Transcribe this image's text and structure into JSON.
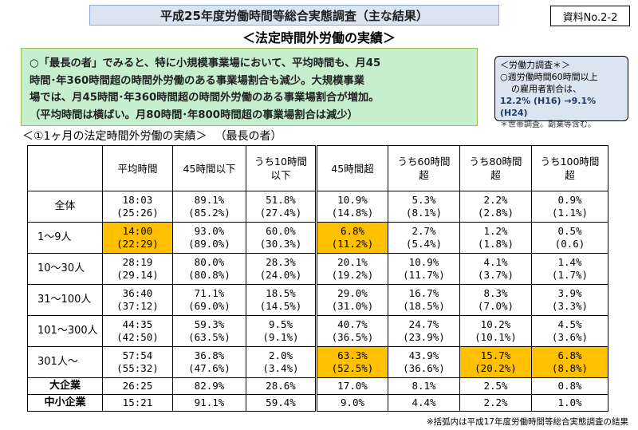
{
  "header": {
    "title": "平成25年度労働時間等総合実態調査（主な結果）",
    "doc_no": "資料No.2-2",
    "subtitle": "＜法定時間外労働の実績＞"
  },
  "summary": {
    "lines": [
      "○「最長の者」でみると、特に小規模事業場において、平均時間も、月45",
      "時間･年360時間超の時間外労働のある事業場割合も減少。大規模事業",
      "場では、月45時間･年360時間超の時間外労働のある事業場割合が増加。",
      "（平均時間は横ばい。月80時間･年800時間超の事業場割合は減少）"
    ]
  },
  "survey_note": {
    "line1": "＜労働力調査＊＞",
    "line2": "○週労働時間60時間以上",
    "line3": "の雇用者割合は、",
    "line4": "12.2% (H16) →9.1% (H24)",
    "line5": "＊世帯調査。副業等含む。"
  },
  "section": {
    "label": "＜①1ヶ月の法定時間外労働の実績＞",
    "sub": "（最長の者）"
  },
  "table": {
    "headers": [
      "平均時間",
      "45時間以下",
      "うち10時間\n以下",
      "45時間超",
      "うち60時間\n超",
      "うち80時間\n超",
      "うち100時間\n超"
    ],
    "rows": [
      {
        "label": "全体",
        "cur": [
          "18:03",
          "89.1%",
          "51.8%",
          "10.9%",
          "5.3%",
          "2.2%",
          "0.9%"
        ],
        "prev": [
          "(25:26)",
          "(85.2%)",
          "(27.4%)",
          "(14.8%)",
          "(8.1%)",
          "(2.8%)",
          "(1.1%)"
        ]
      },
      {
        "label": "1～9人",
        "cur": [
          "14:00",
          "93.0%",
          "60.0%",
          "6.8%",
          "2.7%",
          "1.2%",
          "0.5%"
        ],
        "prev": [
          "(22:29)",
          "(89.0%)",
          "(30.3%)",
          "(11.2%)",
          "(5.4%)",
          "(1.8%)",
          "(0.6)"
        ]
      },
      {
        "label": "10～30人",
        "cur": [
          "28:19",
          "80.0%",
          "28.3%",
          "20.1%",
          "10.9%",
          "4.1%",
          "1.4%"
        ],
        "prev": [
          "(29.14)",
          "(80.8%)",
          "(24.0%)",
          "(19.2%)",
          "(11.7%)",
          "(3.7%)",
          "(1.7%)"
        ]
      },
      {
        "label": "31～100人",
        "cur": [
          "36:40",
          "71.1%",
          "18.5%",
          "29.0%",
          "16.7%",
          "8.3%",
          "3.9%"
        ],
        "prev": [
          "(37:12)",
          "(69.0%)",
          "(14.5%)",
          "(31.0%)",
          "(18.5%)",
          "(7.0%)",
          "(3.3%)"
        ]
      },
      {
        "label": "101～300人",
        "cur": [
          "44:35",
          "59.3%",
          "9.5%",
          "40.7%",
          "24.7%",
          "10.2%",
          "4.5%"
        ],
        "prev": [
          "(42:50)",
          "(63.5%)",
          "(9.1%)",
          "(36.5%)",
          "(23.9%)",
          "(10.1%)",
          "(3.6%)"
        ]
      },
      {
        "label": "301人～",
        "cur": [
          "57:54",
          "36.8%",
          "2.0%",
          "63.3%",
          "43.9%",
          "15.7%",
          "6.8%"
        ],
        "prev": [
          "(55:32)",
          "(47.6%)",
          "(3.4%)",
          "(52.5%)",
          "(36.6%)",
          "(20.2%)",
          "(8.8%)"
        ]
      }
    ],
    "extra_rows": [
      {
        "label": "大企業",
        "values": [
          "26:25",
          "82.9%",
          "28.6%",
          "17.0%",
          "8.1%",
          "2.5%",
          "0.8%"
        ]
      },
      {
        "label": "中小企業",
        "values": [
          "15:21",
          "91.1%",
          "59.4%",
          "9.0%",
          "4.4%",
          "2.2%",
          "1.0%"
        ]
      }
    ]
  },
  "footnote": "※括弧内は平成17年度労働時間等総合実態調査の結果",
  "colors": {
    "highlight": "#ffc000",
    "summary_bg": "#c6efce",
    "title_bg": "#dbe5f1"
  }
}
